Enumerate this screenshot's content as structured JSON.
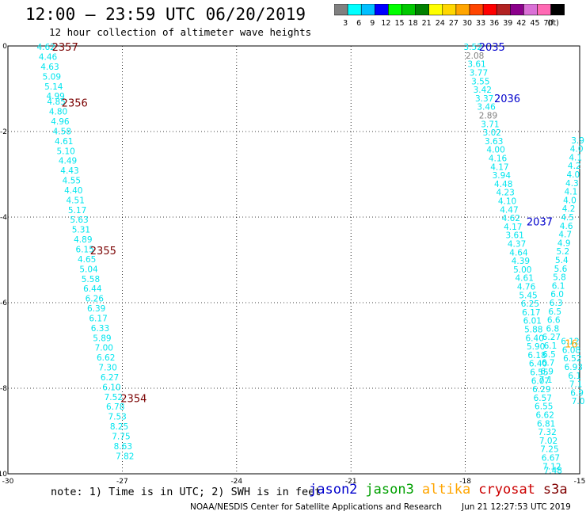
{
  "header": {
    "title": "12:00 – 23:59 UTC 06/20/2019",
    "subtitle": "12 hour collection of altimeter wave heights"
  },
  "colorbar": {
    "colors": [
      "#808080",
      "#00ffff",
      "#00bfff",
      "#0000ff",
      "#00ff00",
      "#00c800",
      "#008000",
      "#ffff00",
      "#ffd700",
      "#ffa500",
      "#ff4500",
      "#ff0000",
      "#b22222",
      "#8b008b",
      "#da70d6",
      "#ff69b4",
      "#000000"
    ],
    "labels": [
      "3",
      "6",
      "9",
      "12",
      "15",
      "18",
      "21",
      "24",
      "27",
      "30",
      "33",
      "36",
      "39",
      "42",
      "45",
      "70"
    ],
    "unit": "(ft)"
  },
  "map": {
    "lon_range": [
      -30,
      -15
    ],
    "lat_range": [
      -10,
      0
    ],
    "lon_ticks": [
      "-30",
      "-27",
      "-24",
      "-21",
      "-18",
      "-15"
    ],
    "lat_ticks": [
      "0",
      "-2",
      "-4",
      "-6",
      "-8",
      "-10"
    ],
    "track_color": "#00e5ee",
    "time_colors": {
      "cryosat": "#7a0000",
      "jason2": "#0000cc",
      "altika": "#ffa500"
    },
    "tracks": [
      {
        "name": "west",
        "points": [
          {
            "lon": -29.0,
            "lat": -0.02,
            "v": "4.62"
          },
          {
            "lon": -28.95,
            "lat": -0.25,
            "v": "4.46"
          },
          {
            "lon": -28.9,
            "lat": -0.48,
            "v": "4.63"
          },
          {
            "lon": -28.85,
            "lat": -0.71,
            "v": "5.09"
          },
          {
            "lon": -28.8,
            "lat": -0.94,
            "v": "5.14"
          },
          {
            "lon": -28.75,
            "lat": -1.17,
            "v": "4.99"
          },
          {
            "lon": -28.73,
            "lat": -1.3,
            "v": "4.85"
          },
          {
            "lon": -28.68,
            "lat": -1.53,
            "v": "4.80"
          },
          {
            "lon": -28.63,
            "lat": -1.76,
            "v": "4.96"
          },
          {
            "lon": -28.58,
            "lat": -1.99,
            "v": "4.58"
          },
          {
            "lon": -28.53,
            "lat": -2.22,
            "v": "4.61"
          },
          {
            "lon": -28.48,
            "lat": -2.45,
            "v": "5.10"
          },
          {
            "lon": -28.43,
            "lat": -2.68,
            "v": "4.49"
          },
          {
            "lon": -28.38,
            "lat": -2.91,
            "v": "4.43"
          },
          {
            "lon": -28.33,
            "lat": -3.14,
            "v": "4.55"
          },
          {
            "lon": -28.28,
            "lat": -3.37,
            "v": "4.40"
          },
          {
            "lon": -28.23,
            "lat": -3.6,
            "v": "4.51"
          },
          {
            "lon": -28.18,
            "lat": -3.83,
            "v": "5.17"
          },
          {
            "lon": -28.13,
            "lat": -4.06,
            "v": "5.63"
          },
          {
            "lon": -28.08,
            "lat": -4.29,
            "v": "5.31"
          },
          {
            "lon": -28.03,
            "lat": -4.52,
            "v": "4.89"
          },
          {
            "lon": -27.98,
            "lat": -4.75,
            "v": "6.15"
          },
          {
            "lon": -27.93,
            "lat": -4.98,
            "v": "4.65"
          },
          {
            "lon": -27.88,
            "lat": -5.21,
            "v": "5.04"
          },
          {
            "lon": -27.83,
            "lat": -5.44,
            "v": "5.58"
          },
          {
            "lon": -27.78,
            "lat": -5.67,
            "v": "6.44"
          },
          {
            "lon": -27.73,
            "lat": -5.9,
            "v": "6.26"
          },
          {
            "lon": -27.68,
            "lat": -6.13,
            "v": "6.39"
          },
          {
            "lon": -27.63,
            "lat": -6.36,
            "v": "6.17"
          },
          {
            "lon": -27.58,
            "lat": -6.59,
            "v": "6.33"
          },
          {
            "lon": -27.53,
            "lat": -6.82,
            "v": "5.89"
          },
          {
            "lon": -27.48,
            "lat": -7.05,
            "v": "7.00"
          },
          {
            "lon": -27.43,
            "lat": -7.28,
            "v": "6.62"
          },
          {
            "lon": -27.38,
            "lat": -7.51,
            "v": "7.30"
          },
          {
            "lon": -27.33,
            "lat": -7.74,
            "v": "6.27"
          },
          {
            "lon": -27.28,
            "lat": -7.97,
            "v": "6.10"
          },
          {
            "lon": -27.23,
            "lat": -8.2,
            "v": "7.52"
          },
          {
            "lon": -27.18,
            "lat": -8.43,
            "v": "6.78"
          },
          {
            "lon": -27.13,
            "lat": -8.66,
            "v": "7.53"
          },
          {
            "lon": -27.08,
            "lat": -8.89,
            "v": "8.25"
          },
          {
            "lon": -27.03,
            "lat": -9.12,
            "v": "7.75"
          },
          {
            "lon": -26.98,
            "lat": -9.35,
            "v": "8.63"
          },
          {
            "lon": -26.93,
            "lat": -9.58,
            "v": "7.82"
          }
        ]
      },
      {
        "name": "east",
        "points": [
          {
            "lon": -17.8,
            "lat": -0.02,
            "v": "3.52"
          },
          {
            "lon": -17.75,
            "lat": -0.22,
            "v": "2.08",
            "c": "#808080"
          },
          {
            "lon": -17.7,
            "lat": -0.42,
            "v": "3.61"
          },
          {
            "lon": -17.65,
            "lat": -0.62,
            "v": "3.77"
          },
          {
            "lon": -17.6,
            "lat": -0.82,
            "v": "3.55"
          },
          {
            "lon": -17.55,
            "lat": -1.02,
            "v": "3.42"
          },
          {
            "lon": -17.5,
            "lat": -1.22,
            "v": "3.37"
          },
          {
            "lon": -17.45,
            "lat": -1.42,
            "v": "3.46"
          },
          {
            "lon": -17.4,
            "lat": -1.62,
            "v": "2.89",
            "c": "#808080"
          },
          {
            "lon": -17.35,
            "lat": -1.82,
            "v": "3.71"
          },
          {
            "lon": -17.3,
            "lat": -2.02,
            "v": "3.02"
          },
          {
            "lon": -17.25,
            "lat": -2.22,
            "v": "3.63"
          },
          {
            "lon": -17.2,
            "lat": -2.42,
            "v": "4.00"
          },
          {
            "lon": -17.15,
            "lat": -2.62,
            "v": "4.16"
          },
          {
            "lon": -17.1,
            "lat": -2.82,
            "v": "4.17"
          },
          {
            "lon": -17.05,
            "lat": -3.02,
            "v": "3.94"
          },
          {
            "lon": -17.0,
            "lat": -3.22,
            "v": "4.48"
          },
          {
            "lon": -16.95,
            "lat": -3.42,
            "v": "4.23"
          },
          {
            "lon": -16.9,
            "lat": -3.62,
            "v": "4.10"
          },
          {
            "lon": -16.85,
            "lat": -3.82,
            "v": "4.47"
          },
          {
            "lon": -16.8,
            "lat": -4.02,
            "v": "4.62"
          },
          {
            "lon": -16.75,
            "lat": -4.22,
            "v": "4.17"
          },
          {
            "lon": -16.7,
            "lat": -4.42,
            "v": "3.61"
          },
          {
            "lon": -16.65,
            "lat": -4.62,
            "v": "4.37"
          },
          {
            "lon": -16.6,
            "lat": -4.82,
            "v": "4.64"
          },
          {
            "lon": -16.55,
            "lat": -5.02,
            "v": "4.39"
          },
          {
            "lon": -16.5,
            "lat": -5.22,
            "v": "5.00"
          },
          {
            "lon": -16.45,
            "lat": -5.42,
            "v": "4.61"
          },
          {
            "lon": -16.4,
            "lat": -5.62,
            "v": "4.76"
          },
          {
            "lon": -16.35,
            "lat": -5.82,
            "v": "5.45"
          },
          {
            "lon": -16.3,
            "lat": -6.02,
            "v": "6.25"
          },
          {
            "lon": -16.27,
            "lat": -6.22,
            "v": "6.17"
          },
          {
            "lon": -16.24,
            "lat": -6.42,
            "v": "6.01"
          },
          {
            "lon": -16.21,
            "lat": -6.62,
            "v": "5.88"
          },
          {
            "lon": -16.18,
            "lat": -6.82,
            "v": "6.40"
          },
          {
            "lon": -16.15,
            "lat": -7.02,
            "v": "5.90"
          },
          {
            "lon": -16.12,
            "lat": -7.22,
            "v": "6.18"
          },
          {
            "lon": -16.09,
            "lat": -7.42,
            "v": "6.40"
          },
          {
            "lon": -16.06,
            "lat": -7.62,
            "v": "6.55"
          },
          {
            "lon": -16.03,
            "lat": -7.82,
            "v": "6.07"
          },
          {
            "lon": -16.0,
            "lat": -8.02,
            "v": "6.29"
          },
          {
            "lon": -15.97,
            "lat": -8.22,
            "v": "6.57"
          },
          {
            "lon": -15.94,
            "lat": -8.42,
            "v": "6.55"
          },
          {
            "lon": -15.91,
            "lat": -8.62,
            "v": "6.62"
          },
          {
            "lon": -15.88,
            "lat": -8.82,
            "v": "6.81"
          },
          {
            "lon": -15.85,
            "lat": -9.02,
            "v": "7.32"
          },
          {
            "lon": -15.82,
            "lat": -9.22,
            "v": "7.02"
          },
          {
            "lon": -15.79,
            "lat": -9.42,
            "v": "7.25"
          },
          {
            "lon": -15.76,
            "lat": -9.62,
            "v": "6.67"
          },
          {
            "lon": -15.73,
            "lat": -9.82,
            "v": "7.12"
          },
          {
            "lon": -15.7,
            "lat": -9.92,
            "v": "7.48"
          }
        ]
      },
      {
        "name": "east-second",
        "points": [
          {
            "lon": -15.05,
            "lat": -2.2,
            "v": "3.9"
          },
          {
            "lon": -15.08,
            "lat": -2.4,
            "v": "4.0"
          },
          {
            "lon": -15.11,
            "lat": -2.6,
            "v": "4.1"
          },
          {
            "lon": -15.14,
            "lat": -2.8,
            "v": "4.2"
          },
          {
            "lon": -15.17,
            "lat": -3.0,
            "v": "4.0"
          },
          {
            "lon": -15.2,
            "lat": -3.2,
            "v": "4.3"
          },
          {
            "lon": -15.23,
            "lat": -3.4,
            "v": "4.1"
          },
          {
            "lon": -15.26,
            "lat": -3.6,
            "v": "4.0"
          },
          {
            "lon": -15.29,
            "lat": -3.8,
            "v": "4.2"
          },
          {
            "lon": -15.32,
            "lat": -4.0,
            "v": "4.5"
          },
          {
            "lon": -15.35,
            "lat": -4.2,
            "v": "4.6"
          },
          {
            "lon": -15.38,
            "lat": -4.4,
            "v": "4.7"
          },
          {
            "lon": -15.41,
            "lat": -4.6,
            "v": "4.9"
          },
          {
            "lon": -15.44,
            "lat": -4.8,
            "v": "5.2"
          },
          {
            "lon": -15.47,
            "lat": -5.0,
            "v": "5.4"
          },
          {
            "lon": -15.5,
            "lat": -5.2,
            "v": "5.6"
          },
          {
            "lon": -15.53,
            "lat": -5.4,
            "v": "5.8"
          },
          {
            "lon": -15.56,
            "lat": -5.6,
            "v": "6.1"
          },
          {
            "lon": -15.59,
            "lat": -5.8,
            "v": "6.0"
          },
          {
            "lon": -15.62,
            "lat": -6.0,
            "v": "6.3"
          },
          {
            "lon": -15.65,
            "lat": -6.2,
            "v": "6.5"
          },
          {
            "lon": -15.68,
            "lat": -6.4,
            "v": "6.6"
          },
          {
            "lon": -15.71,
            "lat": -6.6,
            "v": "6.8"
          },
          {
            "lon": -15.74,
            "lat": -6.8,
            "v": "6.27"
          },
          {
            "lon": -15.77,
            "lat": -7.0,
            "v": "6.1"
          },
          {
            "lon": -15.8,
            "lat": -7.2,
            "v": "6.5"
          },
          {
            "lon": -15.83,
            "lat": -7.4,
            "v": "6.7"
          },
          {
            "lon": -15.86,
            "lat": -7.6,
            "v": "6.9"
          },
          {
            "lon": -15.89,
            "lat": -7.8,
            "v": "7.1"
          }
        ]
      },
      {
        "name": "far-east",
        "points": [
          {
            "lon": -15.25,
            "lat": -6.9,
            "v": "6.12"
          },
          {
            "lon": -15.22,
            "lat": -7.1,
            "v": "6.08"
          },
          {
            "lon": -15.19,
            "lat": -7.3,
            "v": "6.52"
          },
          {
            "lon": -15.16,
            "lat": -7.5,
            "v": "6.93"
          },
          {
            "lon": -15.13,
            "lat": -7.7,
            "v": "6.1"
          },
          {
            "lon": -15.1,
            "lat": -7.9,
            "v": "7.1"
          },
          {
            "lon": -15.07,
            "lat": -8.1,
            "v": "6.9"
          },
          {
            "lon": -15.04,
            "lat": -8.3,
            "v": "7.0"
          }
        ]
      }
    ],
    "times": [
      {
        "text": "2357",
        "lon": -28.5,
        "lat": -0.02,
        "sat": "cryosat"
      },
      {
        "text": "2356",
        "lon": -28.25,
        "lat": -1.32,
        "sat": "cryosat"
      },
      {
        "text": "2355",
        "lon": -27.5,
        "lat": -4.78,
        "sat": "cryosat"
      },
      {
        "text": "2354",
        "lon": -26.7,
        "lat": -8.23,
        "sat": "cryosat"
      },
      {
        "text": "2035",
        "lon": -17.3,
        "lat": -0.02,
        "sat": "jason2"
      },
      {
        "text": "2036",
        "lon": -16.9,
        "lat": -1.22,
        "sat": "jason2"
      },
      {
        "text": "2037",
        "lon": -16.05,
        "lat": -4.1,
        "sat": "jason2"
      },
      {
        "text": "16",
        "lon": -15.22,
        "lat": -6.95,
        "sat": "altika"
      }
    ]
  },
  "footer": {
    "note": "note:  1) Time is in UTC;  2) SWH is in feet",
    "satellites": [
      {
        "name": "jason2",
        "color": "#0000cc"
      },
      {
        "name": "jason3",
        "color": "#00a000"
      },
      {
        "name": "altika",
        "color": "#ffa500"
      },
      {
        "name": "cryosat",
        "color": "#cc0000"
      },
      {
        "name": "s3a",
        "color": "#800000"
      }
    ],
    "credit": "NOAA/NESDIS Center for Satellite Applications and Research",
    "timestamp": "Jun 21 12:27:53 UTC 2019"
  }
}
